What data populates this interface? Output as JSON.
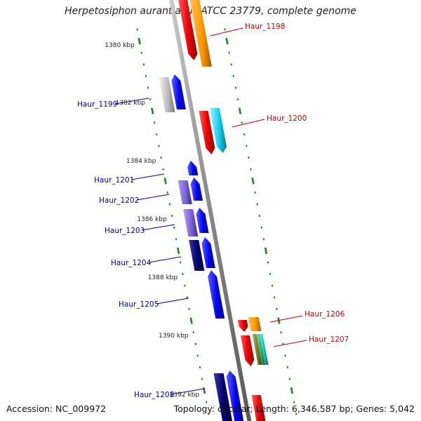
{
  "title": "Herpetosiphon aurantiacus ATCC 23779, complete genome",
  "footer": {
    "accession": "Accession: NC_009972",
    "summary": "Topology: circular; Length: 6,346,587 bp; Genes: 5,042"
  },
  "colors": {
    "forward_label": "#0000aa",
    "reverse_label": "#cc0000",
    "tick": "#1a8a1a",
    "backbone": "#888888"
  },
  "scale_labels": [
    {
      "text": "1380 kbp",
      "kbp": 1380
    },
    {
      "text": "1382 kbp",
      "kbp": 1382
    },
    {
      "text": "1384 kbp",
      "kbp": 1384
    },
    {
      "text": "1386 kbp",
      "kbp": 1386
    },
    {
      "text": "1388 kbp",
      "kbp": 1388
    },
    {
      "text": "1390 kbp",
      "kbp": 1390
    },
    {
      "text": "1392 kbp",
      "kbp": 1392
    }
  ],
  "genes": [
    {
      "name": "Haur_1198",
      "strand": "reverse"
    },
    {
      "name": "Haur_1199",
      "strand": "forward"
    },
    {
      "name": "Haur_1200",
      "strand": "reverse"
    },
    {
      "name": "Haur_1201",
      "strand": "forward"
    },
    {
      "name": "Haur_1202",
      "strand": "forward"
    },
    {
      "name": "Haur_1203",
      "strand": "forward"
    },
    {
      "name": "Haur_1204",
      "strand": "forward"
    },
    {
      "name": "Haur_1205",
      "strand": "forward"
    },
    {
      "name": "Haur_1206",
      "strand": "reverse"
    },
    {
      "name": "Haur_1207",
      "strand": "reverse"
    },
    {
      "name": "Haur_1208",
      "strand": "forward"
    }
  ]
}
